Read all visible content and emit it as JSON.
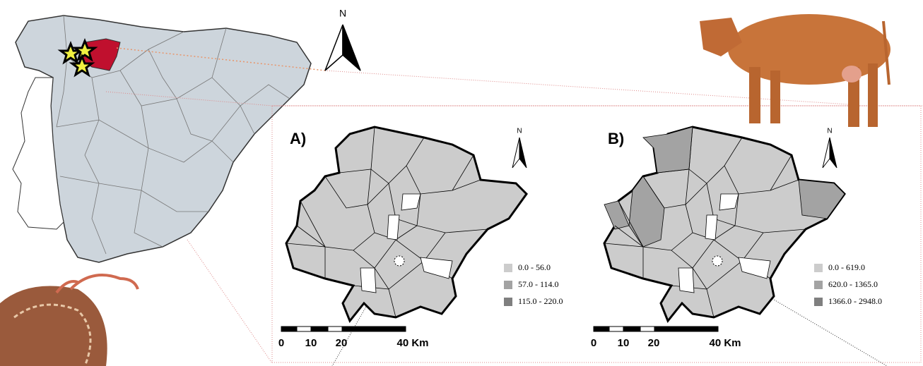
{
  "north_label": "N",
  "panels": [
    {
      "label": "A)",
      "legend": [
        {
          "range": "0.0 - 56.0",
          "color": "#cccccc"
        },
        {
          "range": "57.0 - 114.0",
          "color": "#a3a3a3"
        },
        {
          "range": "115.0 - 220.0",
          "color": "#7f7f7f"
        }
      ],
      "scale": [
        "0",
        "10",
        "20",
        "40 Km"
      ]
    },
    {
      "label": "B)",
      "legend": [
        {
          "range": "0.0 - 619.0",
          "color": "#cccccc"
        },
        {
          "range": "620.0 - 1365.0",
          "color": "#a3a3a3"
        },
        {
          "range": "1366.0 - 2948.0",
          "color": "#7f7f7f"
        }
      ],
      "scale": [
        "0",
        "10",
        "20",
        "40 Km"
      ]
    }
  ]
}
